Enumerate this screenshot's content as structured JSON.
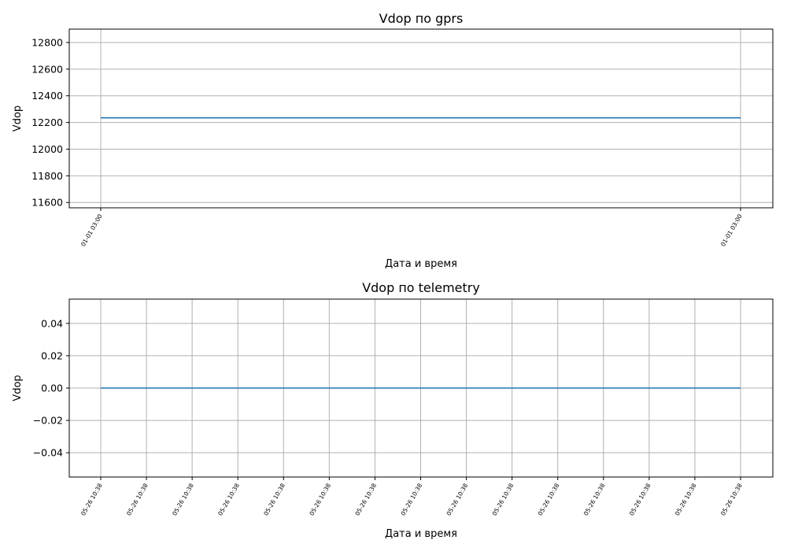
{
  "chart_data": [
    {
      "type": "line",
      "title": "Vdop по gprs",
      "xlabel": "Дата и время",
      "ylabel": "Vdop",
      "x_tick_labels": [
        "01-01 03:00",
        "01-01 03:00"
      ],
      "ylim": [
        11560,
        12900
      ],
      "y_ticks": [
        11600,
        11800,
        12000,
        12200,
        12400,
        12600,
        12800
      ],
      "y_tick_labels": [
        "11600",
        "11800",
        "12000",
        "12200",
        "12400",
        "12600",
        "12800"
      ],
      "grid": true,
      "series": [
        {
          "x": [
            "01-01 03:00",
            "01-01 03:00"
          ],
          "values": [
            12235,
            12235
          ],
          "color": "#1f77b4"
        }
      ]
    },
    {
      "type": "line",
      "title": "Vdop по telemetry",
      "xlabel": "Дата и время",
      "ylabel": "Vdop",
      "x_tick_labels": [
        "05-26 10:38",
        "05-26 10:38",
        "05-26 10:38",
        "05-26 10:38",
        "05-26 10:38",
        "05-26 10:38",
        "05-26 10:38",
        "05-26 10:38",
        "05-26 10:38",
        "05-26 10:38",
        "05-26 10:38",
        "05-26 10:38",
        "05-26 10:38",
        "05-26 10:38",
        "05-26 10:38"
      ],
      "ylim": [
        -0.055,
        0.055
      ],
      "y_ticks": [
        -0.04,
        -0.02,
        0.0,
        0.02,
        0.04
      ],
      "y_tick_labels": [
        "−0.04",
        "−0.02",
        "0.00",
        "0.02",
        "0.04"
      ],
      "grid": true,
      "series": [
        {
          "x": [
            "05-26 10:38",
            "05-26 10:38"
          ],
          "values": [
            0,
            0
          ],
          "color": "#1f77b4"
        }
      ]
    }
  ]
}
